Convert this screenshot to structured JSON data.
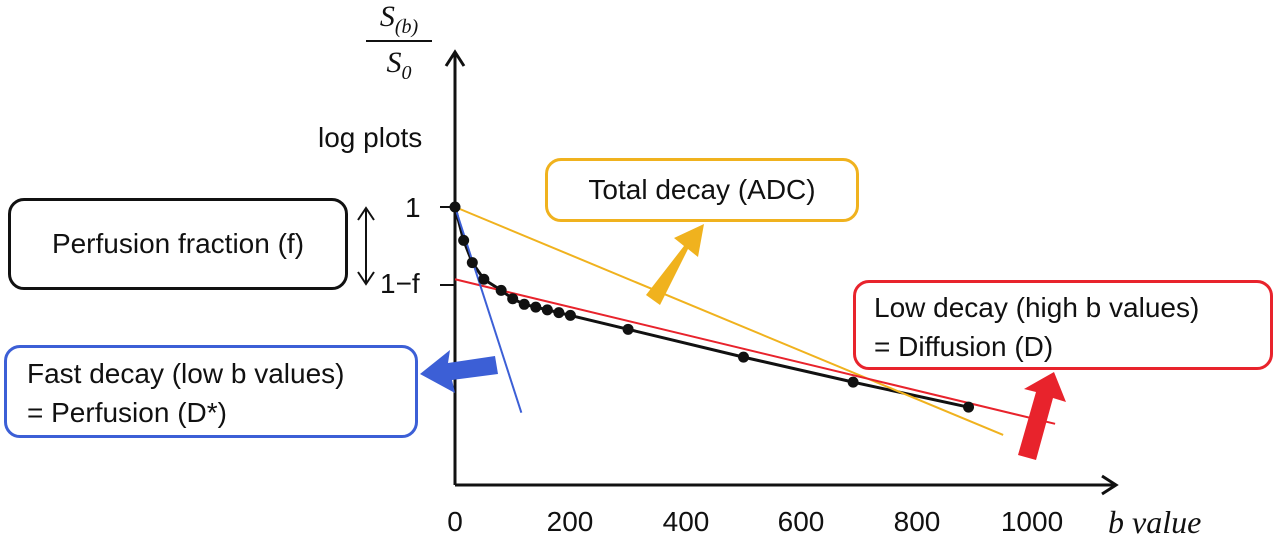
{
  "chart_data": {
    "type": "line",
    "title": "",
    "xlabel": "b value",
    "ylabel_numerator": "S",
    "ylabel_numerator_sub": "(b)",
    "ylabel_denominator": "S",
    "ylabel_denominator_sub": "0",
    "ylabel_scale": "log plots",
    "x_ticks": [
      "0",
      "200",
      "400",
      "600",
      "800",
      "1000"
    ],
    "xlim": [
      0,
      1150
    ],
    "y_ticks": [
      "1",
      "1−f"
    ],
    "grid": false,
    "series": [
      {
        "color": "#111111",
        "marker": "circle",
        "points": [
          [
            0,
            1.0
          ],
          [
            15,
            0.88
          ],
          [
            30,
            0.8
          ],
          [
            50,
            0.74
          ],
          [
            80,
            0.7
          ],
          [
            100,
            0.67
          ],
          [
            120,
            0.65
          ],
          [
            140,
            0.64
          ],
          [
            160,
            0.63
          ],
          [
            180,
            0.62
          ],
          [
            200,
            0.61
          ],
          [
            300,
            0.56
          ],
          [
            500,
            0.46
          ],
          [
            690,
            0.37
          ],
          [
            890,
            0.28
          ]
        ]
      },
      {
        "color": "#f0b21e",
        "points": [
          [
            0,
            1.0
          ],
          [
            950,
            0.18
          ]
        ]
      },
      {
        "color": "#e8232c",
        "points": [
          [
            0,
            0.74
          ],
          [
            1040,
            0.22
          ]
        ]
      },
      {
        "color": "#3c5fd6",
        "points": [
          [
            0,
            1.0
          ],
          [
            115,
            0.26
          ]
        ]
      }
    ]
  },
  "annotations": {
    "perfusion_fraction": "Perfusion fraction (f)",
    "total_decay": "Total decay (ADC)",
    "low_decay_line1": "Low decay (high b values)",
    "low_decay_line2": "= Diffusion (D)",
    "fast_decay_line1": "Fast decay (low b values)",
    "fast_decay_line2": "= Perfusion (D*)"
  },
  "colors": {
    "total": "#f0b21e",
    "low": "#e8232c",
    "fast": "#3c5fd6",
    "data": "#111111"
  }
}
